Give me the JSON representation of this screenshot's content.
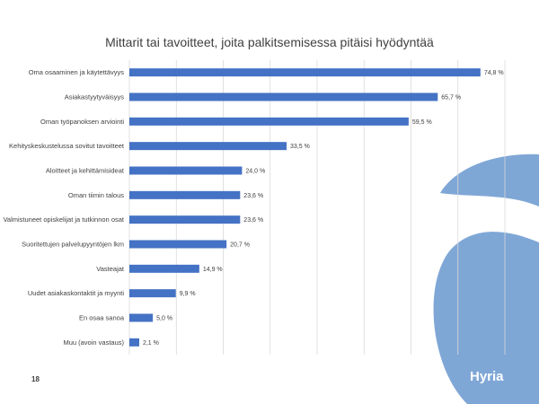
{
  "slide": {
    "title": "Mittarit tai tavoitteet, joita palkitsemisessa pitäisi hyödyntää",
    "page_number": "18",
    "brand": "Hyria"
  },
  "colors": {
    "bar": "#4472C4",
    "grid": "#d9d9d9",
    "brand_shape": "#7fa7d6"
  },
  "chart_data": {
    "type": "bar",
    "orientation": "horizontal",
    "title": "Mittarit tai tavoitteet, joita palkitsemisessa pitäisi hyödyntää",
    "xlim": [
      0,
      80
    ],
    "grid": true,
    "categories": [
      "Oma osaaminen ja käytettävyys",
      "Asiakastyytyväisyys",
      "Oman työpanoksen arviointi",
      "Kehityskeskustelussa sovitut tavoitteet",
      "Aloitteet ja kehittämisideat",
      "Oman tiimin talous",
      "Valmistuneet opiskelijat ja tutkinnon osat",
      "Suoritettujen palvelupyyntöjen lkm",
      "Vasteajat",
      "Uudet asiakaskontaktit ja myynti",
      "En osaa sanoa",
      "Muu (avoin vastaus)"
    ],
    "values": [
      74.8,
      65.7,
      59.5,
      33.5,
      24.0,
      23.6,
      23.6,
      20.7,
      14.9,
      9.9,
      5.0,
      2.1
    ],
    "value_labels": [
      "74,8 %",
      "65,7 %",
      "59,5 %",
      "33,5 %",
      "24,0 %",
      "23,6 %",
      "23,6 %",
      "20,7 %",
      "14,9 %",
      "9,9 %",
      "5,0 %",
      "2,1 %"
    ]
  }
}
